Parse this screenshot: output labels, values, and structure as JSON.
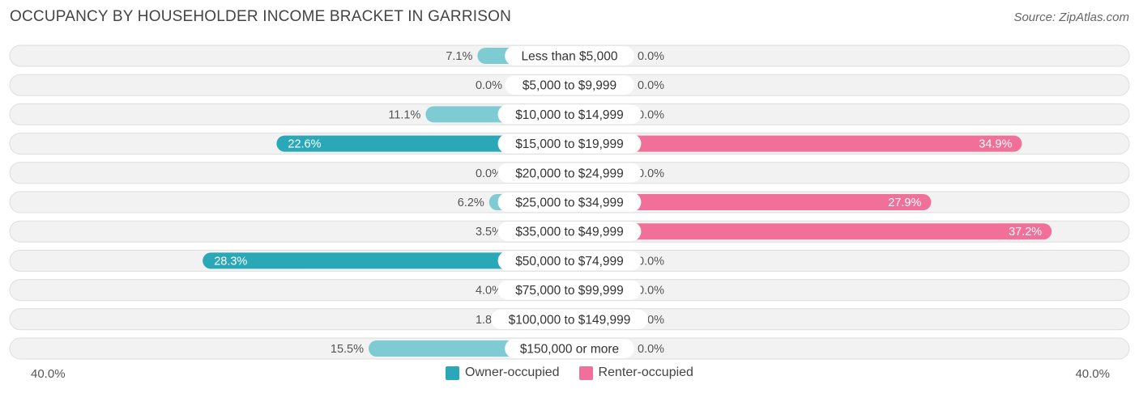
{
  "header": {
    "title": "OCCUPANCY BY HOUSEHOLDER INCOME BRACKET IN GARRISON",
    "source": "Source: ZipAtlas.com"
  },
  "axis": {
    "left_label": "40.0%",
    "right_label": "40.0%"
  },
  "legend": {
    "owner": "Owner-occupied",
    "renter": "Renter-occupied"
  },
  "colors": {
    "owner_strong": "#2aa8b8",
    "owner_light": "#7ecbd4",
    "renter_strong": "#f0709a",
    "renter_light": "#f7a8c2",
    "row_bg": "#f2f2f2",
    "row_border": "#dedede"
  },
  "chart_data": {
    "type": "bar",
    "orientation": "diverging-horizontal",
    "title": "OCCUPANCY BY HOUSEHOLDER INCOME BRACKET IN GARRISON",
    "xlim": [
      -40,
      40
    ],
    "categories": [
      "Less than $5,000",
      "$5,000 to $9,999",
      "$10,000 to $14,999",
      "$15,000 to $19,999",
      "$20,000 to $24,999",
      "$25,000 to $34,999",
      "$35,000 to $49,999",
      "$50,000 to $74,999",
      "$75,000 to $99,999",
      "$100,000 to $149,999",
      "$150,000 or more"
    ],
    "series": [
      {
        "name": "Owner-occupied",
        "values": [
          7.1,
          0.0,
          11.1,
          22.6,
          0.0,
          6.2,
          3.5,
          28.3,
          4.0,
          1.8,
          15.5
        ],
        "labels": [
          "7.1%",
          "0.0%",
          "11.1%",
          "22.6%",
          "0.0%",
          "6.2%",
          "3.5%",
          "28.3%",
          "4.0%",
          "1.8%",
          "15.5%"
        ]
      },
      {
        "name": "Renter-occupied",
        "values": [
          0.0,
          0.0,
          0.0,
          34.9,
          0.0,
          27.9,
          37.2,
          0.0,
          0.0,
          0.0,
          0.0
        ],
        "labels": [
          "0.0%",
          "0.0%",
          "0.0%",
          "34.9%",
          "0.0%",
          "27.9%",
          "37.2%",
          "0.0%",
          "0.0%",
          "0.0%",
          "0.0%"
        ]
      }
    ],
    "legend_position": "bottom-center"
  }
}
